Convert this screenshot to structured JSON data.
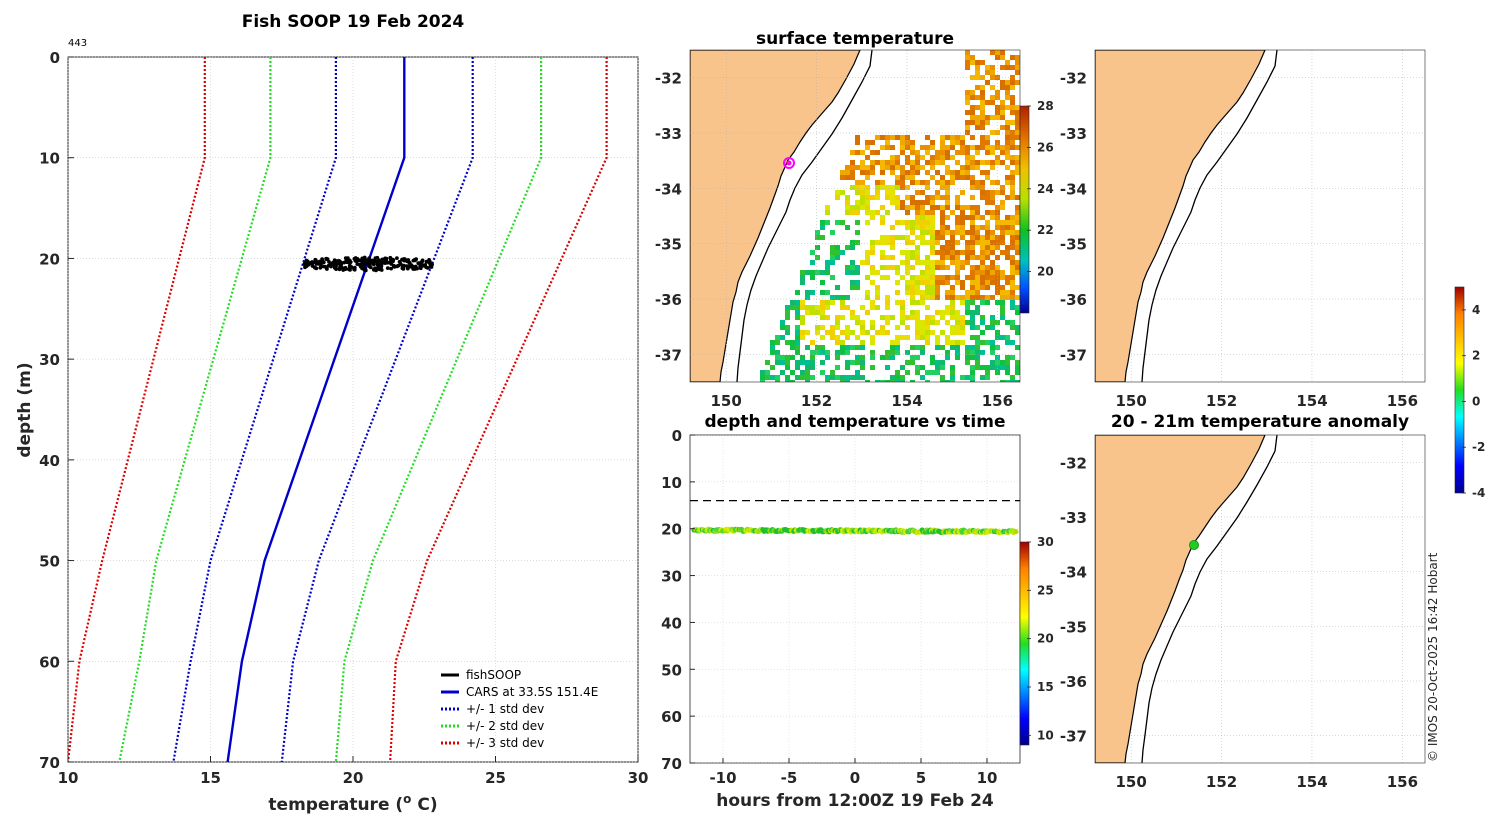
{
  "figure": {
    "copyright": "© IMOS 20-Oct-2025 16:42 Hobart"
  },
  "colors": {
    "land": "#F8C48C",
    "cars": "#0000CC",
    "std1": "#0000CC",
    "std2": "#22DD22",
    "std3": "#DD0000",
    "fishsoop": "#000000"
  },
  "chart_data": [
    {
      "type": "line",
      "title": "Fish SOOP 19 Feb 2024",
      "annotation": "443",
      "xlabel": "temperature (",
      "xlabel_sup": "o",
      "xlabel_end": " C)",
      "ylabel": "depth (m)",
      "xlim": [
        10,
        30
      ],
      "ylim": [
        0,
        70
      ],
      "xticks": [
        "10",
        "15",
        "20",
        "25",
        "30"
      ],
      "yticks": [
        "0",
        "10",
        "20",
        "30",
        "40",
        "50",
        "60",
        "70"
      ],
      "depths": [
        0,
        10,
        50,
        60,
        70
      ],
      "series": [
        {
          "name": "CARS at 33.5S 151.4E",
          "style": "solid",
          "color": "#0000CC",
          "values": [
            21.8,
            21.8,
            16.9,
            16.1,
            15.6
          ]
        },
        {
          "name": "+/- 1 std dev",
          "style": "dotted",
          "color": "#0000CC",
          "values": [
            24.2,
            24.2,
            18.8,
            17.9,
            17.5
          ]
        },
        {
          "name": "+/- 1 std dev (lower)",
          "style": "dotted",
          "color": "#0000CC",
          "values": [
            19.4,
            19.4,
            15.0,
            14.3,
            13.7
          ]
        },
        {
          "name": "+/- 2 std dev",
          "style": "dotted",
          "color": "#22DD22",
          "values": [
            26.6,
            26.6,
            20.7,
            19.7,
            19.4
          ]
        },
        {
          "name": "+/- 2 std dev (lower)",
          "style": "dotted",
          "color": "#22DD22",
          "values": [
            17.1,
            17.1,
            13.1,
            12.5,
            11.8
          ]
        },
        {
          "name": "+/- 3 std dev",
          "style": "dotted",
          "color": "#DD0000",
          "values": [
            28.9,
            28.9,
            22.6,
            21.5,
            21.3
          ]
        },
        {
          "name": "+/- 3 std dev (lower)",
          "style": "dotted",
          "color": "#DD0000",
          "values": [
            14.8,
            14.8,
            11.2,
            10.4,
            10.0
          ]
        }
      ],
      "fishsoop": {
        "name": "fishSOOP",
        "temp_range": [
          18.3,
          22.9
        ],
        "depth_range": [
          19.9,
          21.2
        ]
      },
      "legend": [
        "fishSOOP",
        "CARS at 33.5S 151.4E",
        "+/- 1 std dev",
        "+/- 2 std dev",
        "+/- 3 std dev"
      ],
      "legend_position": "bottom-right"
    },
    {
      "type": "heatmap",
      "title": "surface temperature",
      "xlim": [
        149.2,
        156.5
      ],
      "ylim": [
        -37.5,
        -31.5
      ],
      "xticks": [
        "150",
        "152",
        "154",
        "156"
      ],
      "yticks": [
        "-32",
        "-33",
        "-34",
        "-35",
        "-36",
        "-37"
      ],
      "colorbar": {
        "range": [
          18,
          28
        ],
        "ticks": [
          "20",
          "22",
          "24",
          "26",
          "28"
        ]
      },
      "marker": {
        "lon": 151.4,
        "lat": -33.5,
        "color": "#FF00FF"
      }
    },
    {
      "type": "heatmap",
      "title": "",
      "xlim": [
        149.2,
        156.5
      ],
      "ylim": [
        -37.5,
        -31.5
      ],
      "xticks": [
        "150",
        "152",
        "154",
        "156"
      ],
      "yticks": [
        "-32",
        "-33",
        "-34",
        "-35",
        "-36",
        "-37"
      ],
      "colorbar": {
        "range": [
          -4,
          5
        ],
        "ticks": [
          "4",
          "2",
          "0",
          "-2",
          "-4"
        ]
      }
    },
    {
      "type": "scatter",
      "title": "depth and temperature vs time",
      "xlabel": "hours from 12:00Z 19 Feb 24",
      "xlim": [
        -12.5,
        12.5
      ],
      "ylim": [
        0,
        70
      ],
      "xticks": [
        "-10",
        "-5",
        "0",
        "5",
        "10"
      ],
      "yticks": [
        "0",
        "10",
        "20",
        "30",
        "40",
        "50",
        "60",
        "70"
      ],
      "dashed_depth": 14,
      "points": {
        "depth_start": 20.3,
        "depth_end": 20.6,
        "temp_range": [
          20,
          23
        ]
      },
      "colorbar": {
        "range": [
          9,
          30
        ],
        "ticks": [
          "30",
          "25",
          "20",
          "15",
          "10"
        ]
      }
    },
    {
      "type": "heatmap",
      "title": "20 - 21m temperature anomaly",
      "xlim": [
        149.2,
        156.5
      ],
      "ylim": [
        -37.5,
        -31.5
      ],
      "xticks": [
        "150",
        "152",
        "154",
        "156"
      ],
      "yticks": [
        "-32",
        "-33",
        "-34",
        "-35",
        "-36",
        "-37"
      ],
      "marker": {
        "lon": 151.4,
        "lat": -33.5,
        "color": "#22CC22"
      }
    }
  ]
}
